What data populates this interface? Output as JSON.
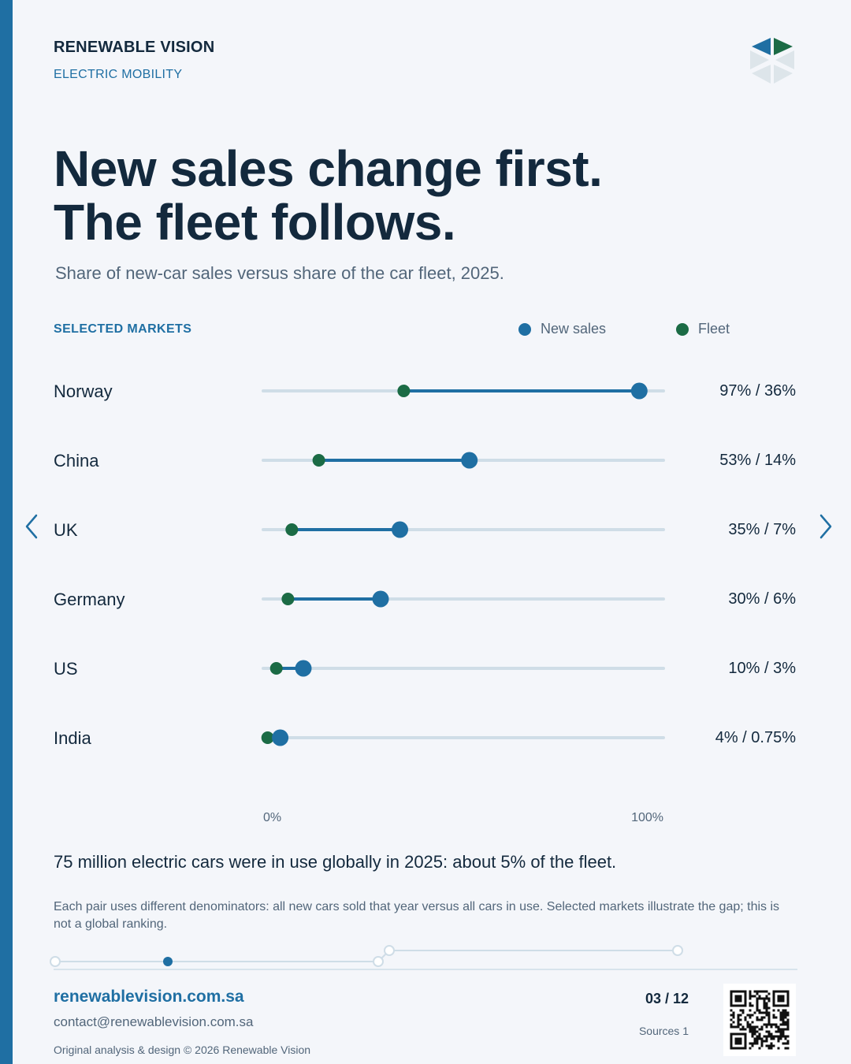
{
  "header": {
    "brand": "RENEWABLE VISION",
    "section": "ELECTRIC MOBILITY"
  },
  "title": {
    "line1": "New sales change first.",
    "line2": "The fleet follows."
  },
  "subtitle": "Share of new-car sales versus share of the car fleet, 2025.",
  "legend_heading": "SELECTED MARKETS",
  "colors": {
    "new_sales": "#1f6fa3",
    "fleet": "#1b6b45",
    "track": "#cfdde7",
    "accent": "#1f6fa3"
  },
  "chart_data": {
    "type": "dumbbell",
    "title": "New sales change first. The fleet follows.",
    "subtitle": "Share of new-car sales versus share of the car fleet, 2025.",
    "categories": [
      "Norway",
      "China",
      "UK",
      "Germany",
      "US",
      "India"
    ],
    "series": [
      {
        "name": "New sales",
        "values": [
          97,
          53,
          35,
          30,
          10,
          4
        ]
      },
      {
        "name": "Fleet",
        "values": [
          36,
          14,
          7,
          6,
          3,
          0.75
        ]
      }
    ],
    "value_labels": [
      "97% / 36%",
      "53% / 14%",
      "35% / 7%",
      "30% / 6%",
      "10% / 3%",
      "4% / 0.75%"
    ],
    "xlim": [
      0,
      100
    ],
    "x_tick_labels": [
      "0%",
      "100%"
    ],
    "legend_position": "top-right",
    "grid": false
  },
  "callout": "75 million electric cars were in use globally in 2025: about 5% of the fleet.",
  "footnote": "Each pair uses different denominators: all new cars sold that year versus all cars in use. Selected markets illustrate the gap; this is not a global ranking.",
  "footer": {
    "url": "renewablevision.com.sa",
    "contact": "contact@renewablevision.com.sa",
    "copyright": "Original analysis & design © 2026 Renewable Vision",
    "page": "03 / 12",
    "sources": "Sources 1"
  },
  "icons": {
    "logo": "hexagon-logo-icon",
    "prev": "chevron-left-icon",
    "next": "chevron-right-icon",
    "qr": "qr-code-icon"
  }
}
